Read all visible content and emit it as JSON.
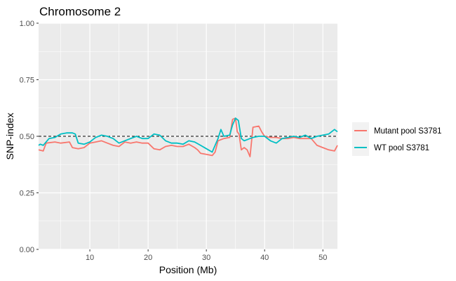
{
  "chart_data": {
    "type": "line",
    "title": "Chromosome 2",
    "xlabel": "Position (Mb)",
    "ylabel": "SNP-index",
    "xlim": [
      1.2,
      52.5
    ],
    "ylim": [
      0,
      1
    ],
    "x_ticks": [
      10,
      20,
      30,
      40,
      50
    ],
    "y_ticks": [
      0,
      0.25,
      0.5,
      0.75,
      1
    ],
    "x_tick_labels": [
      "10",
      "20",
      "30",
      "40",
      "50"
    ],
    "y_tick_labels": [
      "0.00",
      "0.25",
      "0.50",
      "0.75",
      "1.00"
    ],
    "reference_line": {
      "y": 0.5,
      "style": "dashed"
    },
    "grid": true,
    "legend_position": "right",
    "series": [
      {
        "name": "Mutant pool S3781",
        "color": "#f8766d",
        "x": [
          1.2,
          2.0,
          2.5,
          4.0,
          5.0,
          6.5,
          7.0,
          8.0,
          9.0,
          10.0,
          11.0,
          12.0,
          13.0,
          14.0,
          15.0,
          16.0,
          17.0,
          18.0,
          19.0,
          20.0,
          21.0,
          22.0,
          23.0,
          24.0,
          25.0,
          26.0,
          27.0,
          28.0,
          28.5,
          29.0,
          30.0,
          31.0,
          31.5,
          32.0,
          33.0,
          34.0,
          34.5,
          35.0,
          35.3,
          35.6,
          36.0,
          36.5,
          37.0,
          37.5,
          38.0,
          39.0,
          39.5,
          40.0,
          41.0,
          42.0,
          43.0,
          44.0,
          45.0,
          46.0,
          47.0,
          48.0,
          49.0,
          50.0,
          51.0,
          52.0,
          52.5
        ],
        "y": [
          0.44,
          0.435,
          0.47,
          0.475,
          0.47,
          0.475,
          0.45,
          0.445,
          0.45,
          0.47,
          0.475,
          0.48,
          0.47,
          0.46,
          0.455,
          0.475,
          0.47,
          0.475,
          0.47,
          0.47,
          0.445,
          0.44,
          0.455,
          0.46,
          0.455,
          0.455,
          0.465,
          0.45,
          0.44,
          0.425,
          0.42,
          0.415,
          0.43,
          0.48,
          0.49,
          0.495,
          0.575,
          0.58,
          0.52,
          0.51,
          0.44,
          0.45,
          0.44,
          0.41,
          0.54,
          0.545,
          0.52,
          0.5,
          0.495,
          0.495,
          0.49,
          0.49,
          0.495,
          0.49,
          0.49,
          0.49,
          0.46,
          0.45,
          0.44,
          0.435,
          0.46
        ]
      },
      {
        "name": "WT pool S3781",
        "color": "#00bfc4",
        "x": [
          1.2,
          1.5,
          2.0,
          3.0,
          4.0,
          5.0,
          6.0,
          7.0,
          7.5,
          8.0,
          9.0,
          10.0,
          11.0,
          12.0,
          13.0,
          14.0,
          15.0,
          16.0,
          17.0,
          18.0,
          19.0,
          20.0,
          21.0,
          22.0,
          23.0,
          24.0,
          25.0,
          26.0,
          27.0,
          28.0,
          29.0,
          30.0,
          31.0,
          32.0,
          32.5,
          33.0,
          34.0,
          34.5,
          35.0,
          35.5,
          36.0,
          36.5,
          37.0,
          37.5,
          38.0,
          39.0,
          40.0,
          41.0,
          42.0,
          43.0,
          44.0,
          45.0,
          46.0,
          47.0,
          48.0,
          49.0,
          50.0,
          51.0,
          52.0,
          52.5
        ],
        "y": [
          0.46,
          0.465,
          0.46,
          0.49,
          0.495,
          0.51,
          0.515,
          0.515,
          0.51,
          0.47,
          0.465,
          0.475,
          0.495,
          0.505,
          0.5,
          0.49,
          0.47,
          0.48,
          0.49,
          0.5,
          0.49,
          0.49,
          0.51,
          0.505,
          0.48,
          0.47,
          0.47,
          0.465,
          0.48,
          0.475,
          0.46,
          0.445,
          0.43,
          0.49,
          0.53,
          0.5,
          0.505,
          0.55,
          0.58,
          0.57,
          0.49,
          0.48,
          0.485,
          0.49,
          0.495,
          0.5,
          0.5,
          0.48,
          0.47,
          0.49,
          0.495,
          0.5,
          0.495,
          0.505,
          0.49,
          0.5,
          0.505,
          0.51,
          0.53,
          0.52
        ]
      }
    ]
  }
}
